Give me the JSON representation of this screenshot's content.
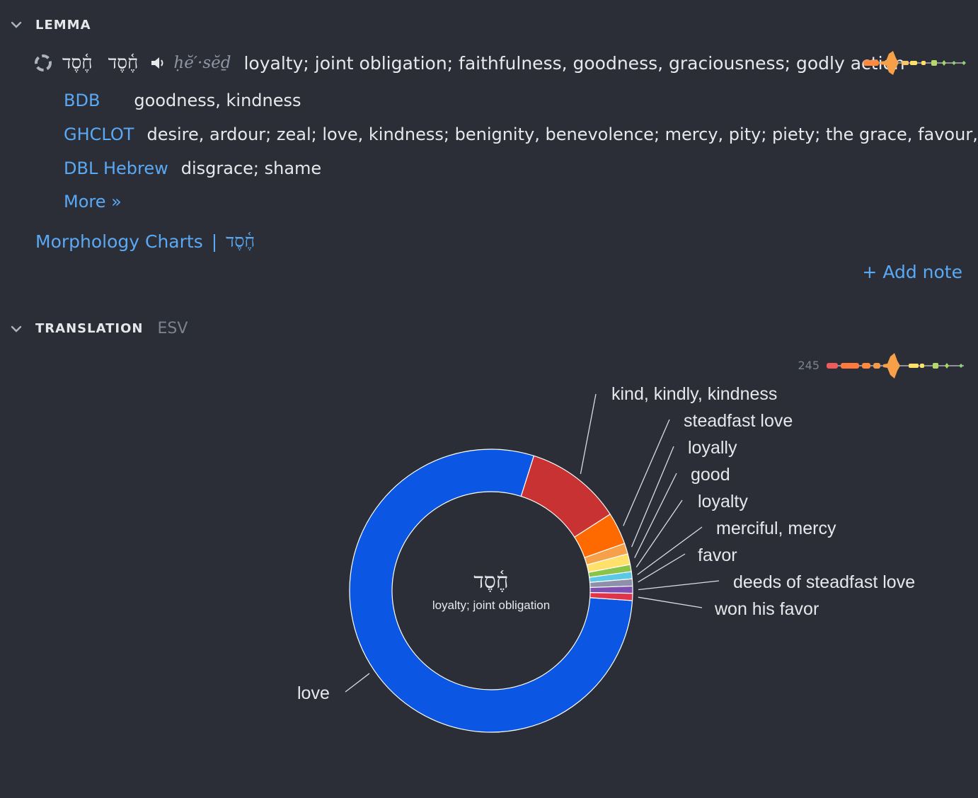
{
  "lemma_section": {
    "title": "LEMMA",
    "hebrew_a": "חֶ֫סֶד",
    "hebrew_b": "חֶ֫סֶד",
    "transliteration": "ḥĕ′·sĕḏ",
    "gloss": "loyalty; joint obligation; faithfulness, goodness, graciousness; godly action",
    "lexicons": [
      {
        "name": "BDB",
        "definition": "goodness, kindness"
      },
      {
        "name": "GHCLOT",
        "definition": "desire, ardour; zeal; love, kindness; benignity, benevolence; mercy, pity; piety; the grace, favour,…"
      },
      {
        "name": "DBL Hebrew",
        "definition": "disgrace; shame"
      }
    ],
    "more_label": "More »",
    "morphology_label": "Morphology Charts",
    "morphology_separator": "|",
    "morphology_hebrew": "חֶ֫סֶד",
    "add_note_label": "+ Add note"
  },
  "translation_section": {
    "title": "TRANSLATION",
    "version": "ESV",
    "count": "245",
    "center_hebrew": "חֶ֫סֶד",
    "center_gloss": "loyalty; joint obligation"
  },
  "icons": {
    "collapse": "chevron-down-icon",
    "spinner": "loading-spinner-icon",
    "audio": "speaker-icon",
    "sparkline": "distribution-sparkline-icon"
  },
  "colors": {
    "background": "#2b2e36",
    "link": "#5aa9f5",
    "text": "#e6e8ec",
    "muted": "#7c8290"
  },
  "chart_data": {
    "type": "pie",
    "style": "donut",
    "total": 245,
    "labels": [
      "love",
      "kind, kindly, kindness",
      "steadfast love",
      "loyally",
      "good",
      "loyalty",
      "merciful, mercy",
      "favor",
      "deeds of steadfast love",
      "won his favor"
    ],
    "values": [
      193,
      27,
      9,
      3,
      3,
      2,
      2,
      2,
      2,
      2
    ],
    "colors": [
      "#0b57e3",
      "#c93232",
      "#ff6a00",
      "#f7a04a",
      "#ffe06b",
      "#8bc34a",
      "#5bc8e8",
      "#8e8fa8",
      "#7d4fb0",
      "#e0344a"
    ]
  }
}
